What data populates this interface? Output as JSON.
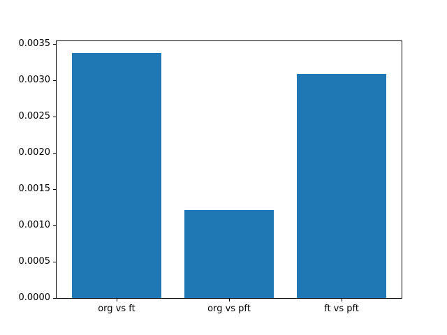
{
  "chart_data": {
    "type": "bar",
    "categories": [
      "org vs ft",
      "org vs pft",
      "ft vs pft"
    ],
    "values": [
      0.00338,
      0.00121,
      0.00309
    ],
    "title": "",
    "xlabel": "",
    "ylabel": "",
    "ylim": [
      0,
      0.003549
    ],
    "yticks": [
      0.0,
      0.0005,
      0.001,
      0.0015,
      0.002,
      0.0025,
      0.003,
      0.0035
    ],
    "ytick_decimals": 4,
    "bar_width_fraction": 0.8,
    "grid": false,
    "legend_position": "none",
    "bar_color": "#1f77b4",
    "spine_color": "#000000",
    "text_color": "#000000",
    "background_color": "#ffffff"
  }
}
